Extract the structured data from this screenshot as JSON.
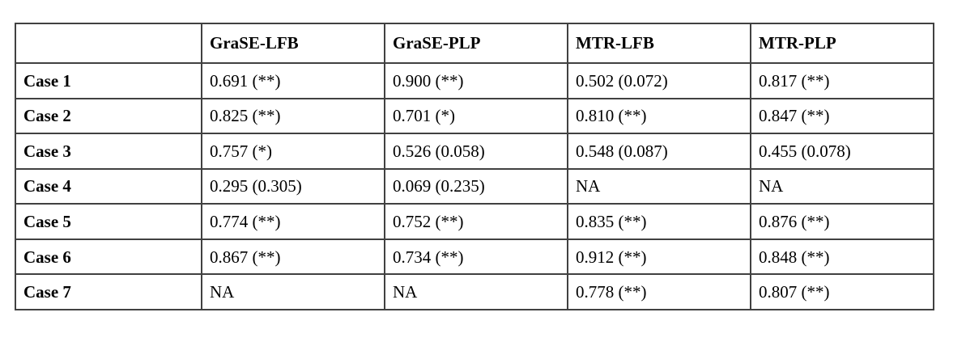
{
  "table": {
    "columns": [
      "",
      "GraSE-LFB",
      "GraSE-PLP",
      "MTR-LFB",
      "MTR-PLP"
    ],
    "rows": [
      {
        "label": "Case 1",
        "values": [
          "0.691 (**)",
          "0.900 (**)",
          "0.502 (0.072)",
          "0.817 (**)"
        ]
      },
      {
        "label": "Case 2",
        "values": [
          "0.825 (**)",
          "0.701 (*)",
          "0.810 (**)",
          "0.847 (**)"
        ]
      },
      {
        "label": "Case 3",
        "values": [
          "0.757 (*)",
          "0.526 (0.058)",
          "0.548 (0.087)",
          "0.455 (0.078)"
        ]
      },
      {
        "label": "Case 4",
        "values": [
          "0.295 (0.305)",
          "0.069 (0.235)",
          "NA",
          "NA"
        ]
      },
      {
        "label": "Case 5",
        "values": [
          "0.774 (**)",
          "0.752 (**)",
          "0.835 (**)",
          "0.876 (**)"
        ]
      },
      {
        "label": "Case 6",
        "values": [
          "0.867 (**)",
          "0.734 (**)",
          "0.912 (**)",
          "0.848 (**)"
        ]
      },
      {
        "label": "Case 7",
        "values": [
          "NA",
          "NA",
          "0.778 (**)",
          "0.807 (**)"
        ]
      }
    ],
    "colors": {
      "border": "#414141",
      "text": "#000000",
      "background": "#ffffff"
    }
  }
}
